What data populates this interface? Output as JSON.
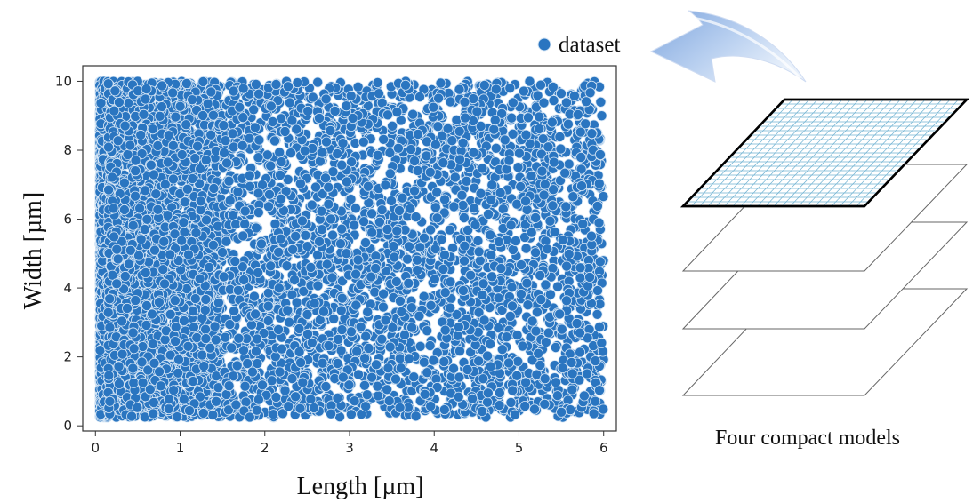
{
  "chart_data": {
    "type": "scatter",
    "title": "",
    "xlabel": "Length [µm]",
    "ylabel": "Width [µm]",
    "xlim": [
      -0.15,
      6.15
    ],
    "ylim": [
      -0.15,
      10.45
    ],
    "x_ticks": [
      "0",
      "1",
      "2",
      "3",
      "4",
      "5",
      "6"
    ],
    "y_ticks": [
      "0",
      "2",
      "4",
      "6",
      "8",
      "10"
    ],
    "grid": false,
    "legend": {
      "position": "above-right",
      "entries": [
        "dataset"
      ]
    },
    "series": [
      {
        "name": "dataset",
        "color": "#2a75c0",
        "edge_color": "#d6e6f5",
        "sampling": [
          {
            "x_range": [
              0.05,
              0.15
            ],
            "y_range": [
              0.25,
              10.0
            ],
            "density": "very high"
          },
          {
            "x_range": [
              0.15,
              1.5
            ],
            "y_range": [
              0.25,
              10.0
            ],
            "density": "high"
          },
          {
            "x_range": [
              1.5,
              6.0
            ],
            "y_range": [
              0.25,
              10.0
            ],
            "density": "moderate"
          }
        ]
      }
    ]
  },
  "diagram": {
    "caption": "Four compact models",
    "layer_count": 4,
    "arrow_color": "#a9c4ea"
  }
}
